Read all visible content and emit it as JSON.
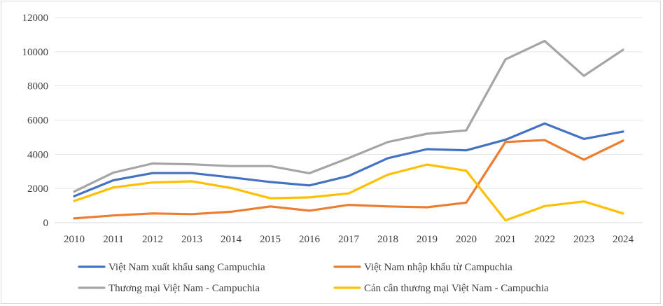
{
  "chart_data": {
    "type": "line",
    "title": "",
    "xlabel": "",
    "ylabel": "",
    "categories": [
      "2010",
      "2011",
      "2012",
      "2013",
      "2014",
      "2015",
      "2016",
      "2017",
      "2018",
      "2019",
      "2020",
      "2021",
      "2022",
      "2023",
      "2024"
    ],
    "ylim": [
      0,
      12000
    ],
    "yticks": [
      0,
      2000,
      4000,
      6000,
      8000,
      10000,
      12000
    ],
    "ytick_labels": [
      "0",
      "2000",
      "4000",
      "6000",
      "8000",
      "10000",
      "12000"
    ],
    "grid": "horizontal",
    "legend_position": "bottom",
    "series": [
      {
        "name": "Việt Nam xuất khẩu sang Campuchia",
        "color": "#4472c4",
        "values": [
          1550,
          2480,
          2900,
          2900,
          2650,
          2380,
          2180,
          2730,
          3770,
          4300,
          4230,
          4850,
          5800,
          4900,
          5330
        ]
      },
      {
        "name": "Việt Nam nhập khẩu từ Campuchia",
        "color": "#ed7d31",
        "values": [
          250,
          420,
          540,
          500,
          640,
          950,
          700,
          1040,
          950,
          900,
          1170,
          4720,
          4830,
          3680,
          4800
        ]
      },
      {
        "name": "Thương mại Việt Nam - Campuchia",
        "color": "#a5a5a5",
        "values": [
          1820,
          2930,
          3460,
          3410,
          3310,
          3310,
          2890,
          3780,
          4720,
          5200,
          5400,
          9550,
          10630,
          8590,
          10110
        ]
      },
      {
        "name": "Cán cân thương mại Việt Nam - Campuchia",
        "color": "#ffc000",
        "values": [
          1270,
          2060,
          2350,
          2420,
          2030,
          1430,
          1480,
          1710,
          2810,
          3400,
          3040,
          130,
          970,
          1240,
          540
        ]
      }
    ]
  }
}
